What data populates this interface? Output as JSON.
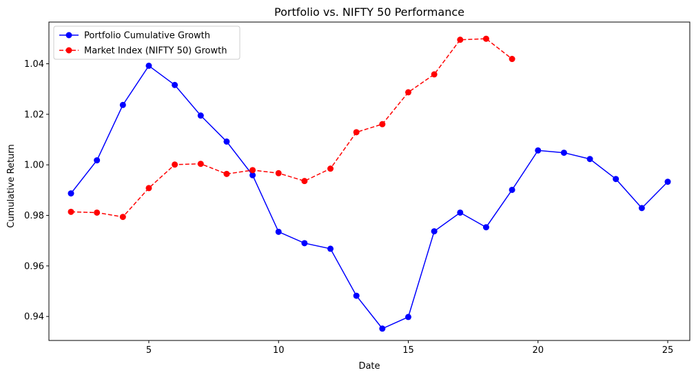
{
  "chart_data": {
    "type": "line",
    "title": "Portfolio vs. NIFTY 50 Performance",
    "xlabel": "Date",
    "ylabel": "Cumulative Return",
    "xlim": [
      1.15,
      25.85
    ],
    "ylim": [
      0.9305,
      1.0565
    ],
    "x_ticks": [
      5,
      10,
      15,
      20,
      25
    ],
    "y_ticks": [
      0.94,
      0.96,
      0.98,
      1.0,
      1.02,
      1.04
    ],
    "y_tick_labels": [
      "0.94",
      "0.96",
      "0.98",
      "1.00",
      "1.02",
      "1.04"
    ],
    "grid": false,
    "legend_position": "upper left",
    "series": [
      {
        "name": "Portfolio Cumulative Growth",
        "color": "#0000ff",
        "linestyle": "solid",
        "marker": "circle",
        "x": [
          2,
          3,
          4,
          5,
          6,
          7,
          8,
          9,
          10,
          11,
          12,
          13,
          14,
          15,
          16,
          17,
          18,
          19,
          20,
          21,
          22,
          23,
          24,
          25
        ],
        "y": [
          0.9887,
          1.0018,
          1.0237,
          1.0392,
          1.0316,
          1.0195,
          1.0092,
          0.9959,
          0.9735,
          0.969,
          0.9668,
          0.9482,
          0.9352,
          0.9398,
          0.9737,
          0.9811,
          0.9753,
          0.9901,
          1.0057,
          1.0048,
          1.0023,
          0.9944,
          0.9829,
          0.9933
        ]
      },
      {
        "name": "Market Index (NIFTY 50) Growth",
        "color": "#ff0000",
        "linestyle": "dashed",
        "marker": "circle",
        "x": [
          2,
          3,
          4,
          5,
          6,
          7,
          8,
          9,
          10,
          11,
          12,
          13,
          14,
          15,
          16,
          17,
          18,
          19
        ],
        "y": [
          0.9814,
          0.9811,
          0.9794,
          0.9908,
          1.0001,
          1.0004,
          0.9964,
          0.9979,
          0.9967,
          0.9936,
          0.9985,
          1.0129,
          1.0161,
          1.0287,
          1.0358,
          1.0495,
          1.0499,
          1.0419
        ]
      }
    ]
  }
}
